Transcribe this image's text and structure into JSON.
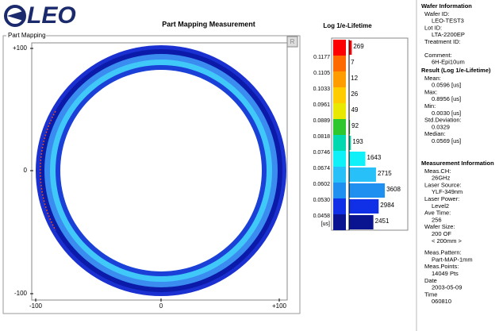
{
  "header": {
    "logo": "LEO",
    "title": "Part Mapping Measurement"
  },
  "map": {
    "group_label": "Part Mapping",
    "button": "R",
    "y_labels": [
      "+100",
      "0",
      "-100"
    ],
    "x_labels": [
      "-100",
      "0",
      "+100"
    ]
  },
  "legend": {
    "title": "Log 1/e-Lifetime",
    "scale_labels": [
      "0.1177",
      "0.1105",
      "0.1033",
      "0.0961",
      "0.0889",
      "0.0818",
      "0.0746",
      "0.0674",
      "0.0602",
      "0.0530",
      "0.0458"
    ],
    "unit": "[us]",
    "bins": [
      {
        "color": "#ff0000",
        "count": 269
      },
      {
        "color": "#ff6a00",
        "count": 7
      },
      {
        "color": "#ff9c00",
        "count": 12
      },
      {
        "color": "#ffcc00",
        "count": 26
      },
      {
        "color": "#e8e800",
        "count": 49
      },
      {
        "color": "#2ec82e",
        "count": 92
      },
      {
        "color": "#00d8b0",
        "count": 193
      },
      {
        "color": "#10f0f8",
        "count": 1643
      },
      {
        "color": "#28c0f8",
        "count": 2715
      },
      {
        "color": "#2090f0",
        "count": 3608
      },
      {
        "color": "#1030e8",
        "count": 2984
      },
      {
        "color": "#0a1490",
        "count": 2451
      }
    ]
  },
  "info": {
    "wafer": {
      "title": "Wafer Information",
      "fields": [
        {
          "label": "Wafer ID:",
          "value": "LEO-TEST3"
        },
        {
          "label": "Lot ID:",
          "value": "LTA-2200EP"
        },
        {
          "label": "Treatment ID:"
        },
        {
          "label": "Comment:",
          "value": "6H-Epi10um"
        }
      ]
    },
    "result": {
      "title": "Result  (Log 1/e-Lifetime)",
      "fields": [
        {
          "label": "Mean:",
          "value": "0.0596 [us]"
        },
        {
          "label": "Max:",
          "value": "0.8956 [us]"
        },
        {
          "label": "Min:",
          "value": "0.0030 [us]"
        },
        {
          "label": "Std.Deviation:",
          "value": "0.0329"
        },
        {
          "label": "Median:",
          "value": "0.0569 [us]"
        }
      ]
    },
    "measurement": {
      "title": "Measurement Information",
      "fields": [
        {
          "label": "Meas.CH:",
          "value": "26GHz"
        },
        {
          "label": "Laser Source:",
          "value": "YLF-349nm"
        },
        {
          "label": "Laser Power:",
          "value": "Level2"
        },
        {
          "label": "Ave Time:",
          "value": "256"
        },
        {
          "label": "Wafer Size:",
          "value": "200 OF",
          "note": "< 200mm >"
        },
        {
          "label": "Meas.Pattern:",
          "value": "Part-MAP-1mm"
        },
        {
          "label": "Meas.Points:",
          "value": "14049 Pts"
        },
        {
          "label": "Date",
          "value": "2003-05-09"
        },
        {
          "label": "Time",
          "value": "060810"
        }
      ]
    }
  }
}
